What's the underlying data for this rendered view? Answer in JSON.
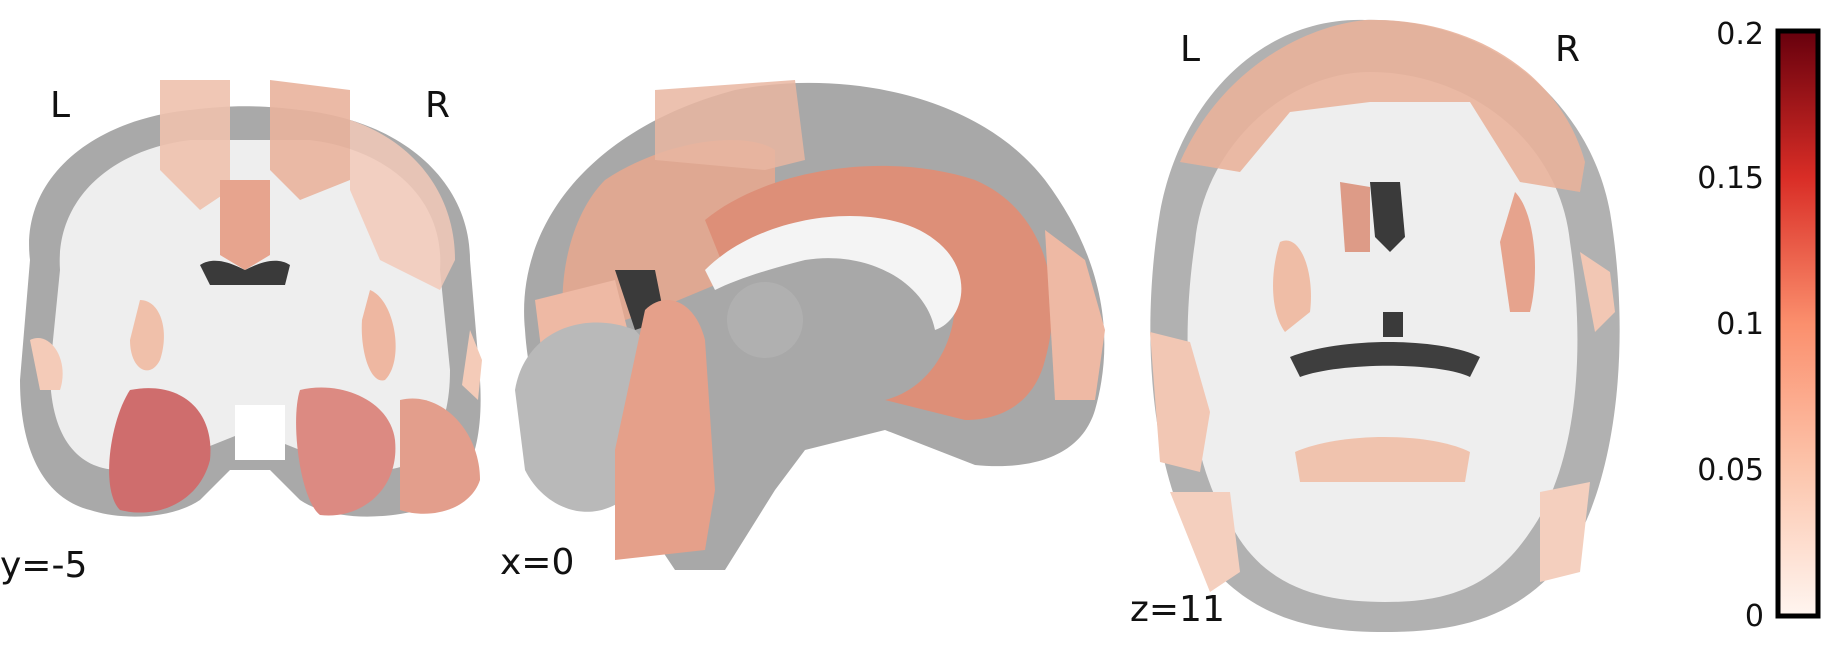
{
  "figure": {
    "views": [
      {
        "name": "coronal",
        "coord_label": "y=-5",
        "left_label": "L",
        "right_label": "R"
      },
      {
        "name": "sagittal",
        "coord_label": "x=0"
      },
      {
        "name": "axial",
        "coord_label": "z=11",
        "left_label": "L",
        "right_label": "R"
      }
    ],
    "colorbar": {
      "min": 0,
      "max": 0.2,
      "ticks": [
        "0.2",
        "0.15",
        "0.1",
        "0.05",
        "0"
      ],
      "colors": {
        "low": "#fff5f0",
        "mid": "#fb6a4a",
        "high": "#67000d"
      }
    },
    "colors": {
      "gray_matter": "#a8a8a8",
      "white_matter": "#f2f2f2",
      "csf": "#3c3c3c",
      "overlay_light": "#f2c4b0",
      "overlay_mid": "#e4a088",
      "overlay_strong": "#d06a6a"
    }
  }
}
